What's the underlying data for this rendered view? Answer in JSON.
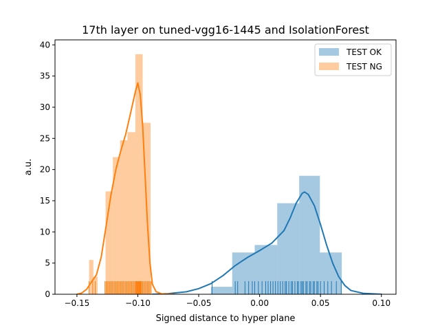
{
  "chart_data": {
    "type": "histogram",
    "title": "17th layer on tuned-vgg16-1445 and IsolationForest",
    "xlabel": "Signed distance to hyper plane",
    "ylabel": "a.u.",
    "xlim": [
      -0.168,
      0.112
    ],
    "ylim": [
      0,
      40.8
    ],
    "x_ticks": [
      -0.15,
      -0.1,
      -0.05,
      0.0,
      0.05,
      0.1
    ],
    "x_tick_labels": [
      "−0.15",
      "−0.10",
      "−0.05",
      "0.00",
      "0.05",
      "0.10"
    ],
    "y_ticks": [
      0,
      5,
      10,
      15,
      20,
      25,
      30,
      35,
      40
    ],
    "y_tick_labels": [
      "0",
      "5",
      "10",
      "15",
      "20",
      "25",
      "30",
      "35",
      "40"
    ],
    "legend_position": "top-right",
    "grid": false,
    "series": [
      {
        "name": "TEST OK",
        "color": "#1f77b4",
        "hist_bins": [
          {
            "x0": -0.04,
            "x1": -0.0225,
            "height": 1.2
          },
          {
            "x0": -0.0225,
            "x1": -0.004,
            "height": 6.7
          },
          {
            "x0": -0.004,
            "x1": 0.0145,
            "height": 7.9
          },
          {
            "x0": 0.0145,
            "x1": 0.0325,
            "height": 14.6
          },
          {
            "x0": 0.0325,
            "x1": 0.0495,
            "height": 19.0
          },
          {
            "x0": 0.0495,
            "x1": 0.0675,
            "height": 6.7
          }
        ],
        "kde": [
          [
            -0.088,
            0.0
          ],
          [
            -0.075,
            0.1
          ],
          [
            -0.06,
            0.4
          ],
          [
            -0.05,
            0.9
          ],
          [
            -0.04,
            1.7
          ],
          [
            -0.03,
            3.0
          ],
          [
            -0.02,
            4.6
          ],
          [
            -0.01,
            5.9
          ],
          [
            0.0,
            7.0
          ],
          [
            0.01,
            8.2
          ],
          [
            0.02,
            10.2
          ],
          [
            0.025,
            12.2
          ],
          [
            0.03,
            14.6
          ],
          [
            0.035,
            16.2
          ],
          [
            0.037,
            16.4
          ],
          [
            0.04,
            16.0
          ],
          [
            0.045,
            14.2
          ],
          [
            0.05,
            11.2
          ],
          [
            0.055,
            7.9
          ],
          [
            0.06,
            5.0
          ],
          [
            0.065,
            2.8
          ],
          [
            0.07,
            1.4
          ],
          [
            0.075,
            0.6
          ],
          [
            0.085,
            0.15
          ],
          [
            0.1,
            0.0
          ]
        ],
        "rug": [
          -0.039,
          -0.02,
          -0.018,
          -0.012,
          -0.009,
          -0.006,
          -0.004,
          -0.001,
          0.002,
          0.005,
          0.007,
          0.009,
          0.011,
          0.013,
          0.015,
          0.017,
          0.019,
          0.021,
          0.022,
          0.024,
          0.026,
          0.027,
          0.029,
          0.031,
          0.032,
          0.034,
          0.035,
          0.036,
          0.038,
          0.039,
          0.041,
          0.042,
          0.044,
          0.045,
          0.047,
          0.048,
          0.05,
          0.053,
          0.056,
          0.059,
          0.063,
          0.067
        ]
      },
      {
        "name": "TEST NG",
        "color": "#ff7f0e",
        "hist_bins": [
          {
            "x0": -0.14,
            "x1": -0.1365,
            "height": 5.5
          },
          {
            "x0": -0.1365,
            "x1": -0.133,
            "height": 2.8
          },
          {
            "x0": -0.133,
            "x1": -0.1265,
            "height": 0.0
          },
          {
            "x0": -0.1265,
            "x1": -0.1205,
            "height": 16.5
          },
          {
            "x0": -0.1205,
            "x1": -0.1145,
            "height": 22.0
          },
          {
            "x0": -0.1145,
            "x1": -0.1085,
            "height": 24.7
          },
          {
            "x0": -0.1085,
            "x1": -0.102,
            "height": 26.0
          },
          {
            "x0": -0.102,
            "x1": -0.096,
            "height": 38.5
          },
          {
            "x0": -0.096,
            "x1": -0.0895,
            "height": 27.5
          },
          {
            "x0": -0.0895,
            "x1": -0.086,
            "height": 0.0
          }
        ],
        "kde": [
          [
            -0.15,
            0.0
          ],
          [
            -0.146,
            0.2
          ],
          [
            -0.142,
            0.8
          ],
          [
            -0.138,
            2.0
          ],
          [
            -0.134,
            3.1
          ],
          [
            -0.13,
            6.0
          ],
          [
            -0.126,
            11.0
          ],
          [
            -0.122,
            16.0
          ],
          [
            -0.118,
            20.0
          ],
          [
            -0.114,
            23.0
          ],
          [
            -0.11,
            25.6
          ],
          [
            -0.106,
            29.0
          ],
          [
            -0.102,
            32.5
          ],
          [
            -0.1,
            33.9
          ],
          [
            -0.098,
            32.0
          ],
          [
            -0.096,
            27.0
          ],
          [
            -0.094,
            19.0
          ],
          [
            -0.092,
            11.0
          ],
          [
            -0.09,
            5.0
          ],
          [
            -0.088,
            1.6
          ],
          [
            -0.085,
            0.4
          ],
          [
            -0.08,
            0.05
          ],
          [
            -0.07,
            0.0
          ]
        ],
        "rug": [
          -0.14,
          -0.137,
          -0.135,
          -0.127,
          -0.126,
          -0.125,
          -0.124,
          -0.123,
          -0.122,
          -0.121,
          -0.12,
          -0.119,
          -0.118,
          -0.117,
          -0.116,
          -0.115,
          -0.114,
          -0.113,
          -0.112,
          -0.111,
          -0.11,
          -0.109,
          -0.108,
          -0.107,
          -0.106,
          -0.105,
          -0.104,
          -0.103,
          -0.102,
          -0.1015,
          -0.101,
          -0.1005,
          -0.1,
          -0.0995,
          -0.099,
          -0.0985,
          -0.098,
          -0.0975,
          -0.097,
          -0.096,
          -0.095,
          -0.094,
          -0.093,
          -0.092,
          -0.091,
          -0.09,
          -0.089
        ]
      }
    ]
  }
}
